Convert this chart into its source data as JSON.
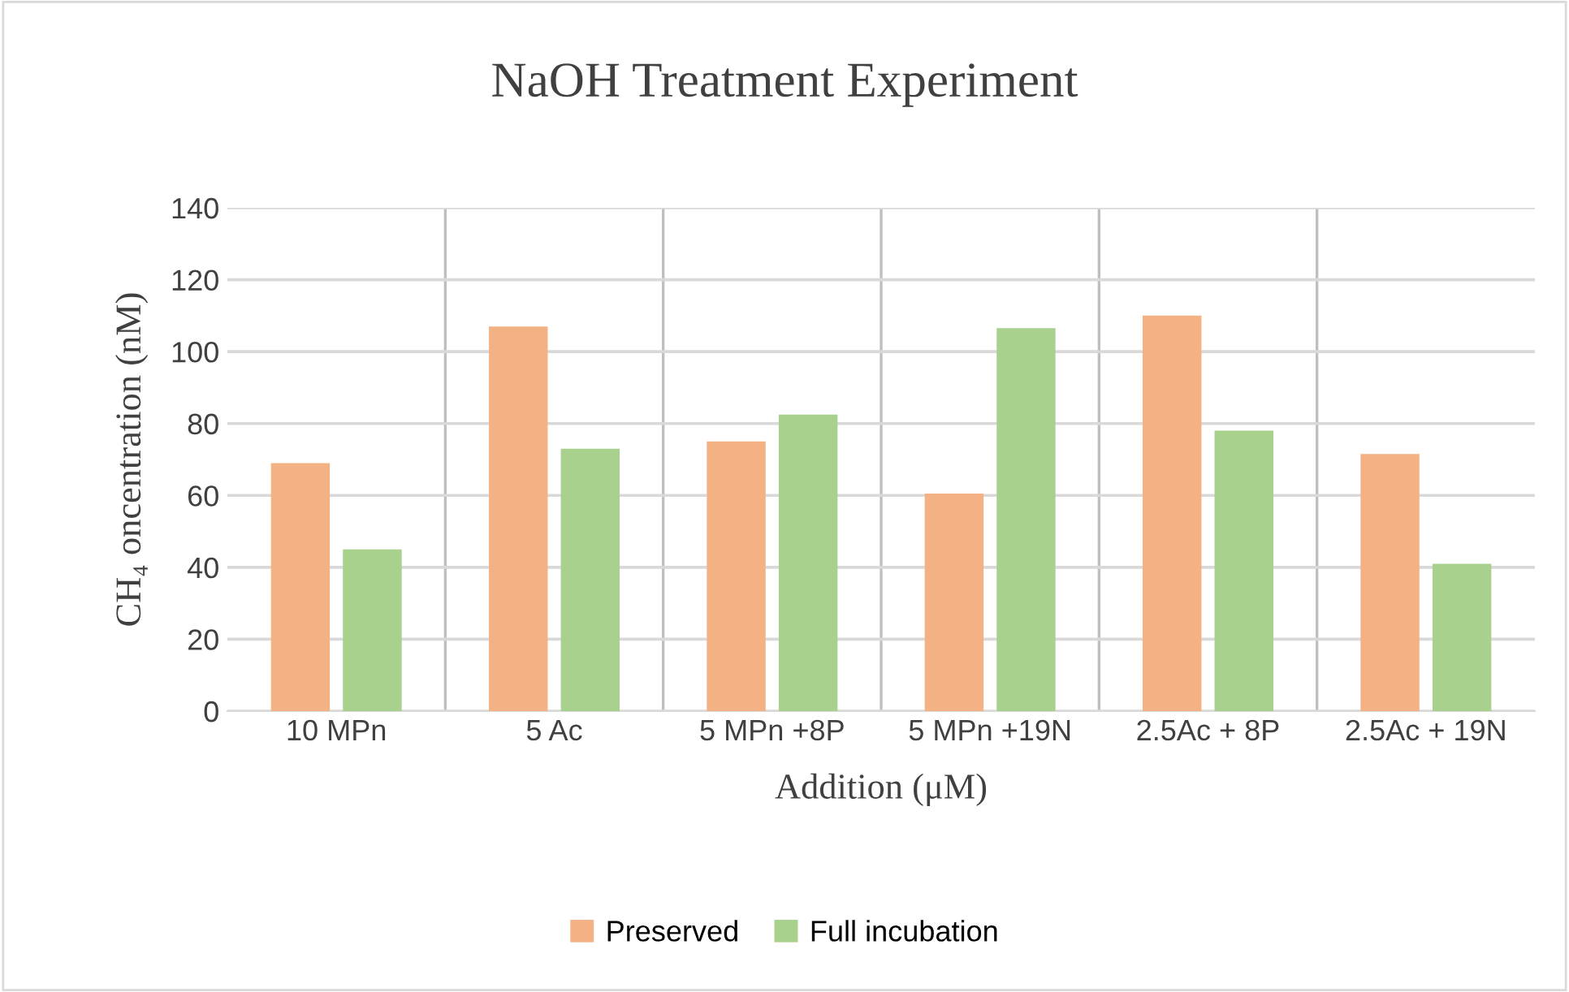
{
  "chart_data": {
    "type": "bar",
    "title": "NaOH Treatment Experiment",
    "xlabel": "Addition (μM)",
    "ylabel": "CH₄ oncentration (nM)",
    "categories": [
      "10 MPn",
      "5 Ac",
      "5 MPn +8P",
      "5 MPn +19N",
      "2.5Ac + 8P",
      "2.5Ac + 19N"
    ],
    "series": [
      {
        "name": "Preserved",
        "color": "#f4b183",
        "values": [
          69,
          107,
          75,
          60.5,
          110,
          71.5
        ]
      },
      {
        "name": "Full incubation",
        "color": "#a9d18e",
        "values": [
          45,
          73,
          82.5,
          106.5,
          78,
          41
        ]
      }
    ],
    "ylim": [
      0,
      140
    ],
    "yticks": [
      0,
      20,
      40,
      60,
      80,
      100,
      120,
      140
    ],
    "grid": true,
    "legend": "bottom"
  }
}
